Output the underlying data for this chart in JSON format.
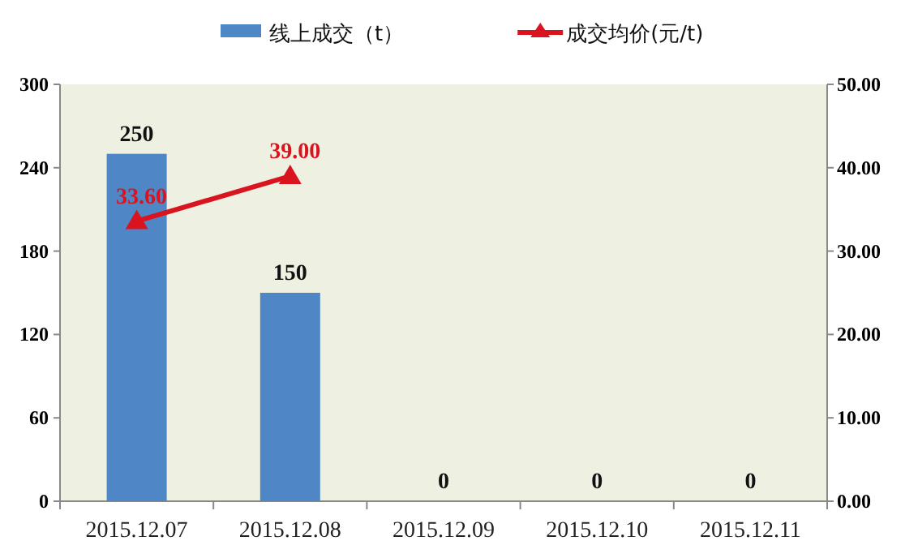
{
  "chart_data": {
    "type": "bar",
    "categories": [
      "2015.12.07",
      "2015.12.08",
      "2015.12.09",
      "2015.12.10",
      "2015.12.11"
    ],
    "series": [
      {
        "name": "线上成交（t）",
        "color": "#4f86c6",
        "values": [
          250,
          150,
          0,
          0,
          0
        ],
        "value_labels": [
          "250",
          "150",
          "0",
          "0",
          "0"
        ]
      },
      {
        "name": "成交均价(元/t)",
        "type": "line",
        "axis": "y2",
        "color": "#d9141e",
        "marker": "triangle",
        "values": [
          33.6,
          39.0,
          null,
          null,
          null
        ],
        "value_labels": [
          "33.60",
          "39.00",
          null,
          null,
          null
        ]
      }
    ],
    "ylim": [
      0,
      300
    ],
    "yticks": [
      0,
      60,
      120,
      180,
      240,
      300
    ],
    "y2lim": [
      0,
      50
    ],
    "y2ticks": [
      {
        "value": 0,
        "label": "0.00"
      },
      {
        "value": 10,
        "label": "10.00"
      },
      {
        "value": 20,
        "label": "20.00"
      },
      {
        "value": 30,
        "label": "30.00"
      },
      {
        "value": 40,
        "label": "40.00"
      },
      {
        "value": 50,
        "label": "50.00"
      }
    ],
    "legend": "top"
  }
}
